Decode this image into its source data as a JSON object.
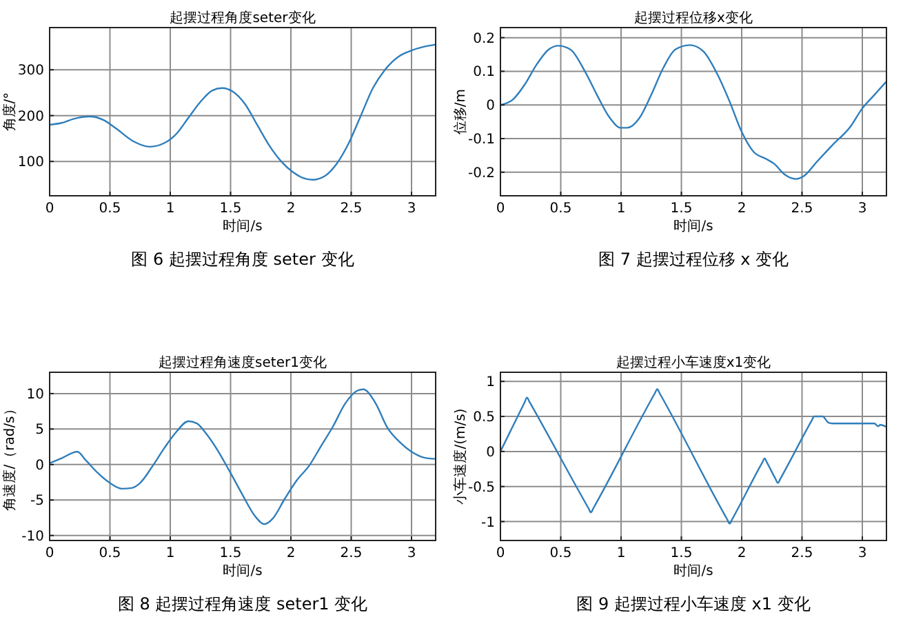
{
  "chart_data": [
    {
      "type": "line",
      "title": "起摆过程角度seter变化",
      "xlabel": "时间/s",
      "ylabel": "角度/°",
      "annotations": [
        "图 6 起摆过程角度 seter 变化"
      ],
      "xlim": [
        0,
        3.2
      ],
      "xticks": [
        0,
        0.5,
        1,
        1.5,
        2,
        2.5,
        3
      ],
      "ylim": [
        25,
        392
      ],
      "yticks": [
        100,
        200,
        300
      ],
      "grid": true,
      "series": [
        {
          "color": "#2e7ebc",
          "x": [
            0,
            0.1,
            0.2,
            0.33,
            0.45,
            0.55,
            0.7,
            0.83,
            0.95,
            1.05,
            1.15,
            1.25,
            1.35,
            1.43,
            1.52,
            1.62,
            1.72,
            1.82,
            1.92,
            2.02,
            2.1,
            2.18,
            2.28,
            2.38,
            2.48,
            2.58,
            2.68,
            2.78,
            2.9,
            3.0,
            3.1,
            3.2
          ],
          "values": [
            180,
            184,
            193,
            198,
            190,
            172,
            143,
            132,
            140,
            160,
            195,
            230,
            255,
            260,
            252,
            225,
            180,
            135,
            100,
            76,
            64,
            60,
            68,
            95,
            140,
            200,
            260,
            300,
            330,
            342,
            350,
            355
          ]
        }
      ]
    },
    {
      "type": "line",
      "title": "起摆过程位移x变化",
      "xlabel": "时间/s",
      "ylabel": "位移/m",
      "annotations": [
        "图 7 起摆过程位移 x 变化"
      ],
      "xlim": [
        0,
        3.2
      ],
      "xticks": [
        0,
        0.5,
        1,
        1.5,
        2,
        2.5,
        3
      ],
      "ylim": [
        -0.27,
        0.23
      ],
      "yticks": [
        -0.2,
        -0.1,
        0,
        0.1,
        0.2
      ],
      "grid": true,
      "series": [
        {
          "color": "#2e7ebc",
          "x": [
            0,
            0.1,
            0.2,
            0.3,
            0.4,
            0.48,
            0.58,
            0.7,
            0.8,
            0.9,
            1.0,
            1.05,
            1.15,
            1.25,
            1.35,
            1.45,
            1.57,
            1.68,
            1.8,
            1.9,
            2.0,
            2.1,
            2.2,
            2.27,
            2.35,
            2.45,
            2.52,
            2.62,
            2.75,
            2.9,
            3.0,
            3.1,
            3.2
          ],
          "values": [
            0,
            0.015,
            0.06,
            0.12,
            0.165,
            0.176,
            0.165,
            0.1,
            0.03,
            -0.035,
            -0.068,
            -0.068,
            -0.04,
            0.03,
            0.11,
            0.165,
            0.178,
            0.16,
            0.09,
            0.01,
            -0.08,
            -0.14,
            -0.16,
            -0.175,
            -0.205,
            -0.22,
            -0.21,
            -0.17,
            -0.12,
            -0.065,
            -0.01,
            0.03,
            0.07
          ]
        }
      ]
    },
    {
      "type": "line",
      "title": "起摆过程角速度seter1变化",
      "xlabel": "时间/s",
      "ylabel": "角速度/（rad/s）",
      "annotations": [
        "图 8 起摆过程角速度 seter1 变化"
      ],
      "xlim": [
        0,
        3.2
      ],
      "xticks": [
        0,
        0.5,
        1,
        1.5,
        2,
        2.5,
        3
      ],
      "ylim": [
        -10.7,
        13
      ],
      "yticks": [
        -10,
        -5,
        0,
        5,
        10
      ],
      "grid": true,
      "series": [
        {
          "color": "#2e7ebc",
          "x": [
            0,
            0.1,
            0.23,
            0.3,
            0.4,
            0.5,
            0.6,
            0.68,
            0.75,
            0.85,
            0.95,
            1.05,
            1.15,
            1.22,
            1.3,
            1.4,
            1.5,
            1.6,
            1.7,
            1.78,
            1.85,
            1.95,
            2.05,
            2.15,
            2.25,
            2.35,
            2.45,
            2.55,
            2.6,
            2.7,
            2.8,
            2.9,
            3.0,
            3.1,
            3.2
          ],
          "values": [
            0.2,
            0.9,
            1.8,
            0.6,
            -1.2,
            -2.6,
            -3.4,
            -3.3,
            -2.6,
            -0.3,
            2.3,
            4.6,
            6.1,
            5.8,
            4.3,
            1.8,
            -1.2,
            -4.3,
            -7.2,
            -8.4,
            -7.6,
            -4.8,
            -2.2,
            -0.2,
            2.6,
            5.4,
            8.6,
            10.4,
            10.6,
            8.7,
            5.2,
            3.2,
            1.8,
            1.0,
            0.8
          ]
        }
      ]
    },
    {
      "type": "line",
      "title": "起摆过程小车速度x1变化",
      "xlabel": "时间/s",
      "ylabel": "小车速度/(m/s)",
      "annotations": [
        "图 9 起摆过程小车速度 x1 变化"
      ],
      "xlim": [
        0,
        3.2
      ],
      "xticks": [
        0,
        0.5,
        1,
        1.5,
        2,
        2.5,
        3
      ],
      "ylim": [
        -1.27,
        1.13
      ],
      "yticks": [
        -1,
        -0.5,
        0,
        0.5,
        1
      ],
      "grid": true,
      "series": [
        {
          "color": "#2e7ebc",
          "x": [
            0,
            0.2,
            0.22,
            0.24,
            0.73,
            0.75,
            0.77,
            1.28,
            1.3,
            1.32,
            1.88,
            1.9,
            1.92,
            2.17,
            2.19,
            2.21,
            2.28,
            2.3,
            2.32,
            2.58,
            2.6,
            2.67,
            2.72,
            2.75,
            3.1,
            3.13,
            3.15,
            3.2
          ],
          "values": [
            0,
            0.7,
            0.77,
            0.71,
            -0.81,
            -0.87,
            -0.81,
            0.83,
            0.89,
            0.83,
            -0.97,
            -1.03,
            -0.97,
            -0.16,
            -0.1,
            -0.16,
            -0.39,
            -0.45,
            -0.39,
            0.44,
            0.5,
            0.5,
            0.41,
            0.4,
            0.4,
            0.36,
            0.38,
            0.35
          ]
        }
      ]
    }
  ]
}
